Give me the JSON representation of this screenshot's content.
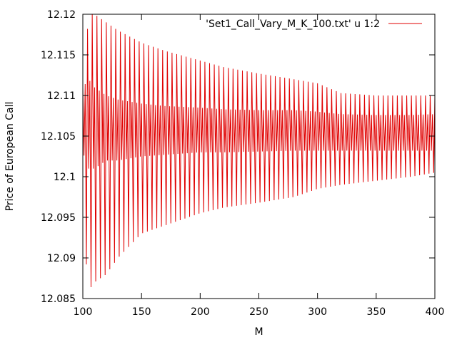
{
  "chart_data": {
    "type": "line",
    "xlabel": "M",
    "ylabel": "Price of European Call",
    "xlim": [
      100,
      400
    ],
    "ylim": [
      12.085,
      12.12
    ],
    "x_ticks": [
      "100",
      "150",
      "200",
      "250",
      "300",
      "350",
      "400"
    ],
    "y_ticks": [
      "12.085",
      "12.09",
      "12.095",
      "12.1",
      "12.105",
      "12.11",
      "12.115",
      "12.12"
    ],
    "grid": false,
    "legend_position": "top-right",
    "series": [
      {
        "name": "'Set1_Call_Vary_M_K_100.txt' u 1:2",
        "color": "#e00000",
        "description_x_start": 100,
        "description_x_end": 400,
        "envelope": {
          "x": [
            100,
            105,
            110,
            120,
            130,
            150,
            170,
            200,
            220,
            250,
            280,
            300,
            320,
            350,
            380,
            400
          ],
          "upper": [
            12.111,
            12.12,
            12.12,
            12.119,
            12.118,
            12.1165,
            12.1155,
            12.1143,
            12.1135,
            12.1127,
            12.112,
            12.1115,
            12.1103,
            12.11,
            12.11,
            12.11
          ],
          "lower": [
            12.094,
            12.086,
            12.087,
            12.088,
            12.09,
            12.093,
            12.094,
            12.0955,
            12.0962,
            12.0968,
            12.0975,
            12.0985,
            12.099,
            12.0995,
            12.1,
            12.1005
          ],
          "mid_hi": [
            12.111,
            12.112,
            12.111,
            12.11,
            12.1095,
            12.109,
            12.1087,
            12.1085,
            12.1083,
            12.1082,
            12.1082,
            12.108,
            12.1077,
            12.1076,
            12.1076,
            12.1077
          ],
          "mid_lo": [
            12.103,
            12.101,
            12.101,
            12.102,
            12.102,
            12.1025,
            12.1027,
            12.103,
            12.103,
            12.1031,
            12.1032,
            12.1032,
            12.1032,
            12.1032,
            12.1032,
            12.1032
          ]
        }
      }
    ]
  }
}
